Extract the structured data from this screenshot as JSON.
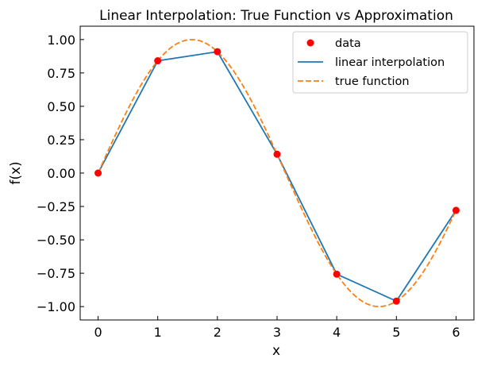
{
  "chart_data": {
    "type": "line",
    "title": "Linear Interpolation: True Function vs Approximation",
    "xlabel": "x",
    "ylabel": "f(x)",
    "xlim": [
      -0.3,
      6.3
    ],
    "ylim": [
      -1.1,
      1.1
    ],
    "xticks": [
      0,
      1,
      2,
      3,
      4,
      5,
      6
    ],
    "xtick_labels": [
      "0",
      "1",
      "2",
      "3",
      "4",
      "5",
      "6"
    ],
    "yticks": [
      1.0,
      0.75,
      0.5,
      0.25,
      0.0,
      -0.25,
      -0.5,
      -0.75,
      -1.0
    ],
    "ytick_labels": [
      "1.00",
      "0.75",
      "0.50",
      "0.25",
      "0.00",
      "−0.25",
      "−0.50",
      "−0.75",
      "−1.00"
    ],
    "grid": false,
    "legend_position": "top-right",
    "series": [
      {
        "name": "data",
        "kind": "scatter",
        "color": "#ff0000",
        "x": [
          0,
          1,
          2,
          3,
          4,
          5,
          6
        ],
        "y": [
          0.0,
          0.841,
          0.909,
          0.141,
          -0.757,
          -0.959,
          -0.279
        ]
      },
      {
        "name": "linear interpolation",
        "kind": "line",
        "color": "#1f77b4",
        "x": [
          0,
          1,
          2,
          3,
          4,
          5,
          6
        ],
        "y": [
          0.0,
          0.841,
          0.909,
          0.141,
          -0.757,
          -0.959,
          -0.279
        ]
      },
      {
        "name": "true function",
        "kind": "dashed-line",
        "color": "#ff7f0e",
        "x": [
          0,
          0.25,
          0.5,
          0.75,
          1.0,
          1.25,
          1.5,
          1.75,
          2.0,
          2.25,
          2.5,
          2.75,
          3.0,
          3.25,
          3.5,
          3.75,
          4.0,
          4.25,
          4.5,
          4.75,
          5.0,
          5.25,
          5.5,
          5.75,
          6.0
        ],
        "y": [
          0.0,
          0.247,
          0.479,
          0.682,
          0.841,
          0.949,
          0.997,
          0.984,
          0.909,
          0.778,
          0.598,
          0.382,
          0.141,
          -0.108,
          -0.351,
          -0.572,
          -0.757,
          -0.895,
          -0.978,
          -0.999,
          -0.959,
          -0.859,
          -0.706,
          -0.508,
          -0.279
        ]
      }
    ]
  }
}
